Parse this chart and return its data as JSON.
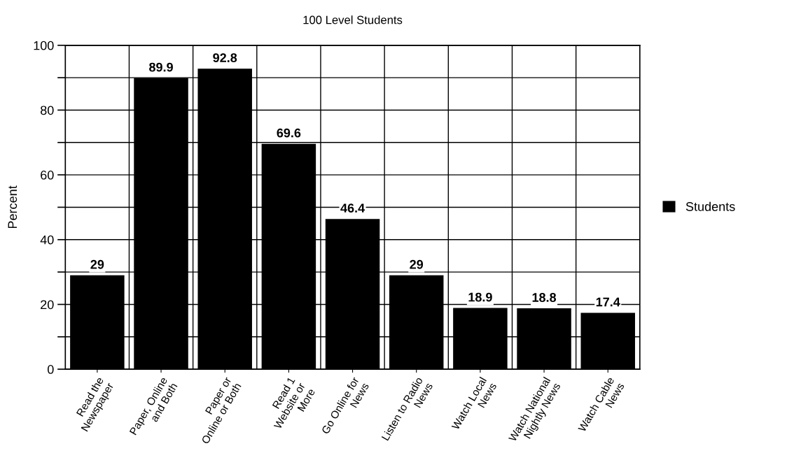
{
  "chart_data": {
    "type": "bar",
    "title": "100 Level Students",
    "ylabel": "Percent",
    "categories": [
      "Read the\nNewspaper",
      "Paper, Online\nand Both",
      "Paper or\nOnline or Both",
      "Read 1\nWebsite or\nMore",
      "Go Online for\nNews",
      "Listen to Radio\nNews",
      "Watch Local\nNews",
      "Watch National\nNightly News",
      "Watch Cable\nNews"
    ],
    "series": [
      {
        "name": "Students",
        "color": "#000000",
        "values": [
          29,
          89.9,
          92.8,
          69.6,
          46.4,
          29,
          18.9,
          18.8,
          17.4
        ]
      }
    ],
    "ylim": [
      0,
      100
    ],
    "yticks": [
      0,
      {
        "value": 10,
        "label": null
      },
      20,
      {
        "value": 30,
        "label": null
      },
      40,
      {
        "value": 50,
        "label": null
      },
      60,
      {
        "value": 70,
        "label": null
      },
      80,
      {
        "value": 90,
        "label": null
      },
      100
    ],
    "grid": true,
    "data_labels": true,
    "legend": "right"
  }
}
